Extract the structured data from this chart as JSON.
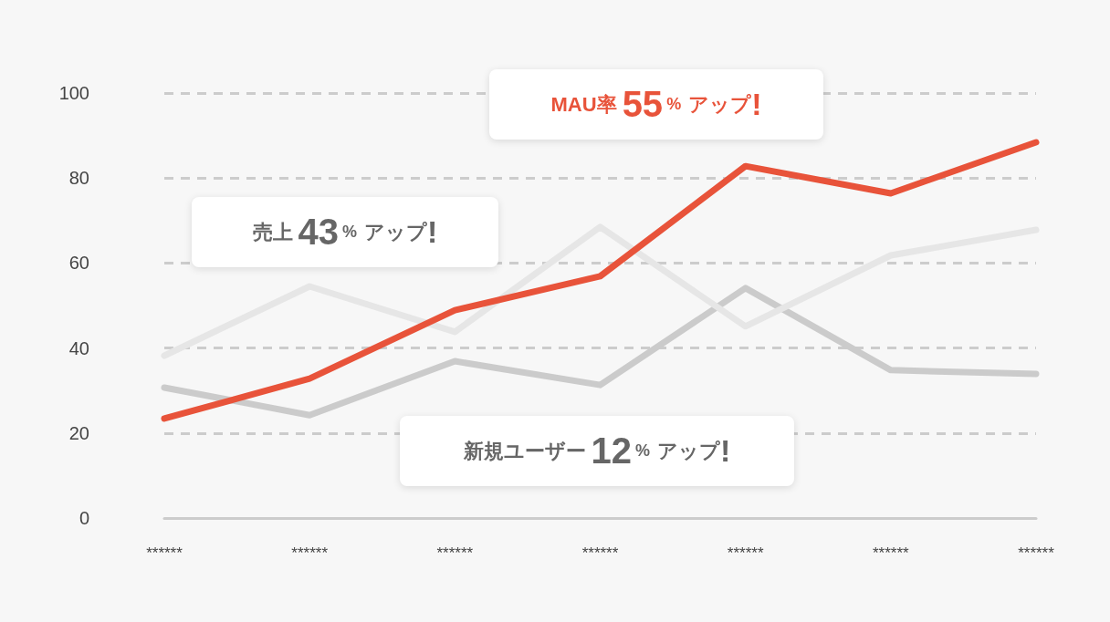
{
  "chart_data": {
    "type": "line",
    "categories": [
      "******",
      "******",
      "******",
      "******",
      "******",
      "******",
      "******"
    ],
    "series": [
      {
        "color": "#e8533a",
        "values": [
          23.4,
          32.8,
          48.9,
          56.9,
          82.8,
          76.4,
          88.4
        ]
      },
      {
        "color": "#e6e6e6",
        "values": [
          38.2,
          54.5,
          43.8,
          68.5,
          45.1,
          61.8,
          67.8
        ]
      },
      {
        "color": "#cbcbcb",
        "values": [
          30.7,
          24.2,
          36.9,
          31.3,
          54.1,
          34.8,
          33.9
        ]
      }
    ],
    "ylim": [
      0,
      100
    ],
    "yticks": [
      0,
      20,
      40,
      60,
      80,
      100
    ],
    "grid": "y",
    "marker": "none",
    "line_style": "solid",
    "annotations": [
      "MAU率55%アップ!",
      "売上43%アップ!",
      "新規ユーザー12%アップ!"
    ]
  }
}
